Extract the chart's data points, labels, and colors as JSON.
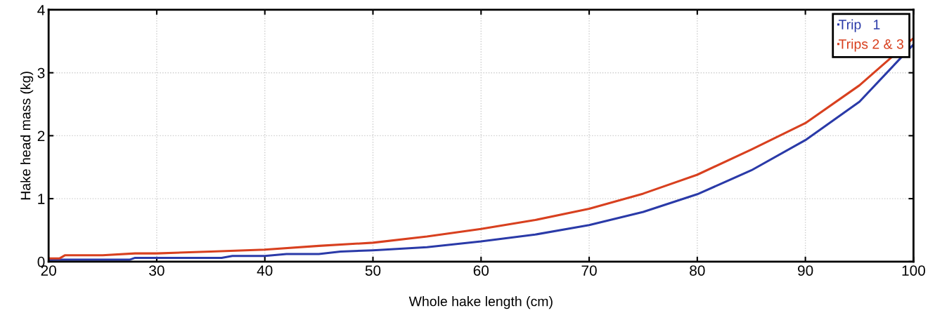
{
  "chart_data": {
    "type": "line",
    "xlabel": "Whole hake length (cm)",
    "ylabel": "Hake head mass (kg)",
    "xlim": [
      20,
      100
    ],
    "xticks": [
      20,
      30,
      40,
      50,
      60,
      70,
      80,
      90,
      100
    ],
    "ylim": [
      0,
      4
    ],
    "yticks": [
      0,
      1,
      2,
      3,
      4
    ],
    "grid": true,
    "legend": "top right",
    "marker": "none",
    "line_style": "solid",
    "series": [
      {
        "name": "Trip   1",
        "color": "#2a3aa8",
        "x": [
          20,
          25,
          27.5,
          28,
          30,
          35,
          36,
          37,
          40,
          42,
          45,
          47,
          50,
          55,
          60,
          65,
          70,
          75,
          80,
          85,
          90,
          95,
          100
        ],
        "values": [
          0.03,
          0.03,
          0.03,
          0.06,
          0.06,
          0.06,
          0.06,
          0.09,
          0.09,
          0.12,
          0.12,
          0.16,
          0.18,
          0.23,
          0.32,
          0.43,
          0.58,
          0.79,
          1.07,
          1.45,
          1.93,
          2.54,
          3.45
        ]
      },
      {
        "name": "Trips 2 & 3",
        "color": "#d8401f",
        "x": [
          20,
          21,
          21.5,
          25,
          28,
          30,
          35,
          40,
          45,
          50,
          55,
          60,
          65,
          70,
          75,
          80,
          85,
          90,
          95,
          100
        ],
        "values": [
          0.05,
          0.05,
          0.1,
          0.1,
          0.13,
          0.13,
          0.16,
          0.19,
          0.25,
          0.3,
          0.4,
          0.52,
          0.66,
          0.84,
          1.08,
          1.38,
          1.78,
          2.2,
          2.8,
          3.55
        ]
      }
    ]
  }
}
